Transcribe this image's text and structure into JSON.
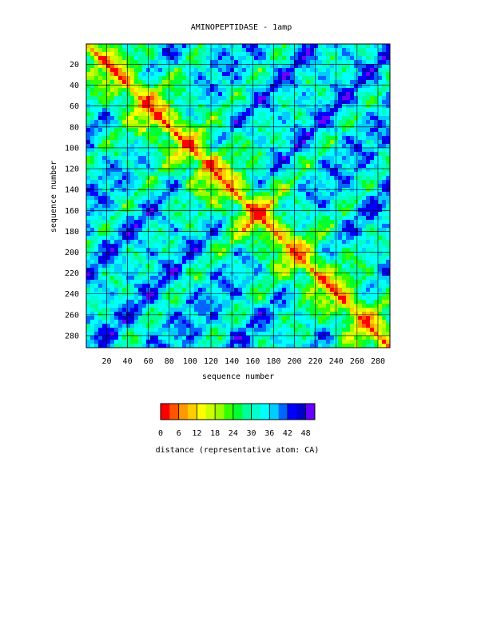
{
  "chart_data": {
    "type": "heatmap",
    "title": "AMINOPEPTIDASE - 1amp",
    "xlabel": "sequence number",
    "ylabel": "sequence number",
    "n_residues": 291,
    "x_ticks": [
      20,
      40,
      60,
      80,
      100,
      120,
      140,
      160,
      180,
      200,
      220,
      240,
      260,
      280
    ],
    "y_ticks": [
      20,
      40,
      60,
      80,
      100,
      120,
      140,
      160,
      180,
      200,
      220,
      240,
      260,
      280
    ],
    "xlim": [
      1,
      291
    ],
    "ylim": [
      1,
      291
    ],
    "y_inverted": true,
    "grid": true,
    "colorbar": {
      "label": "distance (representative atom: CA)",
      "ticks": [
        0,
        6,
        12,
        18,
        24,
        30,
        36,
        42,
        48
      ],
      "range": [
        0,
        51
      ],
      "colors": [
        "#ff0000",
        "#ff5500",
        "#ff9900",
        "#ffcc00",
        "#ffff00",
        "#ccff00",
        "#99ff00",
        "#33ff00",
        "#00ff33",
        "#00ff99",
        "#00ffcc",
        "#00ffff",
        "#00ccff",
        "#0066ff",
        "#0000ff",
        "#0000cc",
        "#6600ff"
      ]
    }
  }
}
